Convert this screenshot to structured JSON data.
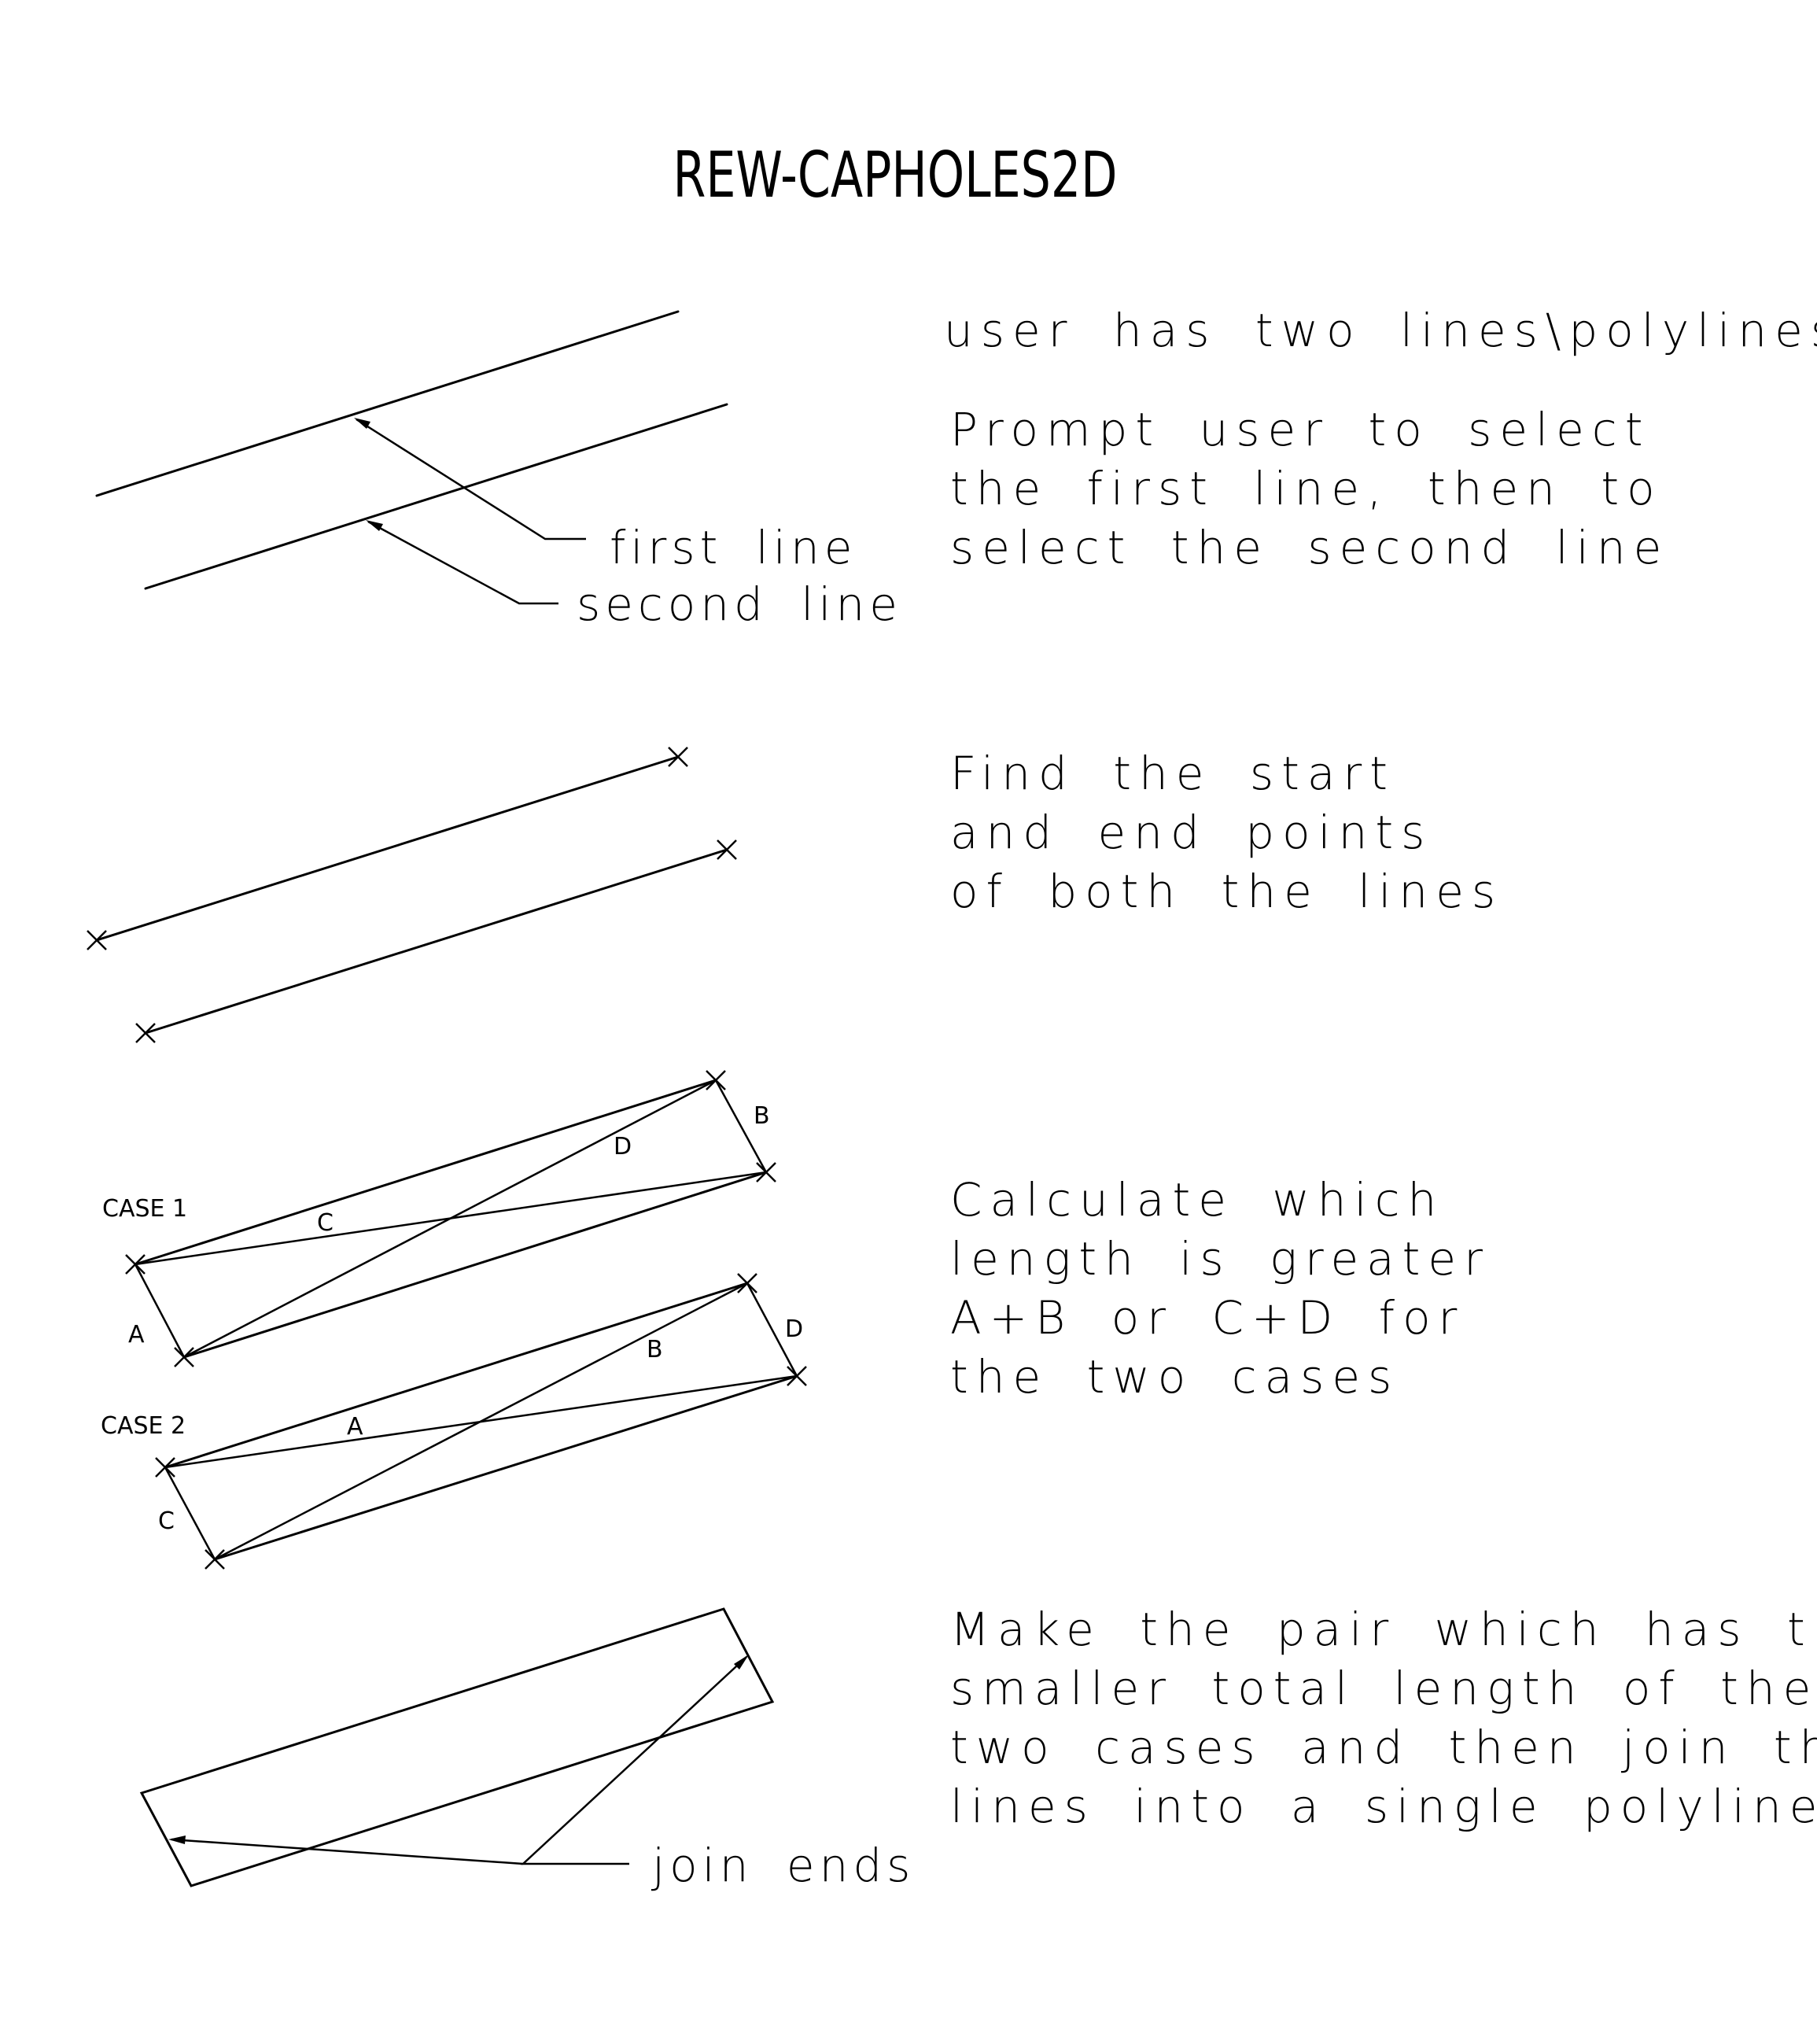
{
  "title": "REW-CAPHOLES2D",
  "step1": {
    "desc": [
      "user has two lines\\polylines"
    ],
    "desc2": [
      "Prompt user to select",
      "the first line, then to",
      "select the second line"
    ],
    "leader_first": "first line",
    "leader_second": "second line"
  },
  "step2": {
    "desc": [
      "Find the start",
      "and end points",
      "of both the lines"
    ]
  },
  "step3": {
    "desc": [
      "Calculate which",
      "length is greater",
      "A+B or C+D for",
      "the two cases"
    ],
    "case1_label": "CASE 1",
    "case2_label": "CASE 2",
    "case1_letters": {
      "A": "A",
      "B": "B",
      "C": "C",
      "D": "D"
    },
    "case2_letters": {
      "A": "A",
      "B": "B",
      "C": "C",
      "D": "D"
    }
  },
  "step4": {
    "desc": [
      "Make the pair which has the",
      "smaller total length of the",
      "two cases and then join the",
      "lines into a single polyline"
    ],
    "leader": "join ends"
  }
}
